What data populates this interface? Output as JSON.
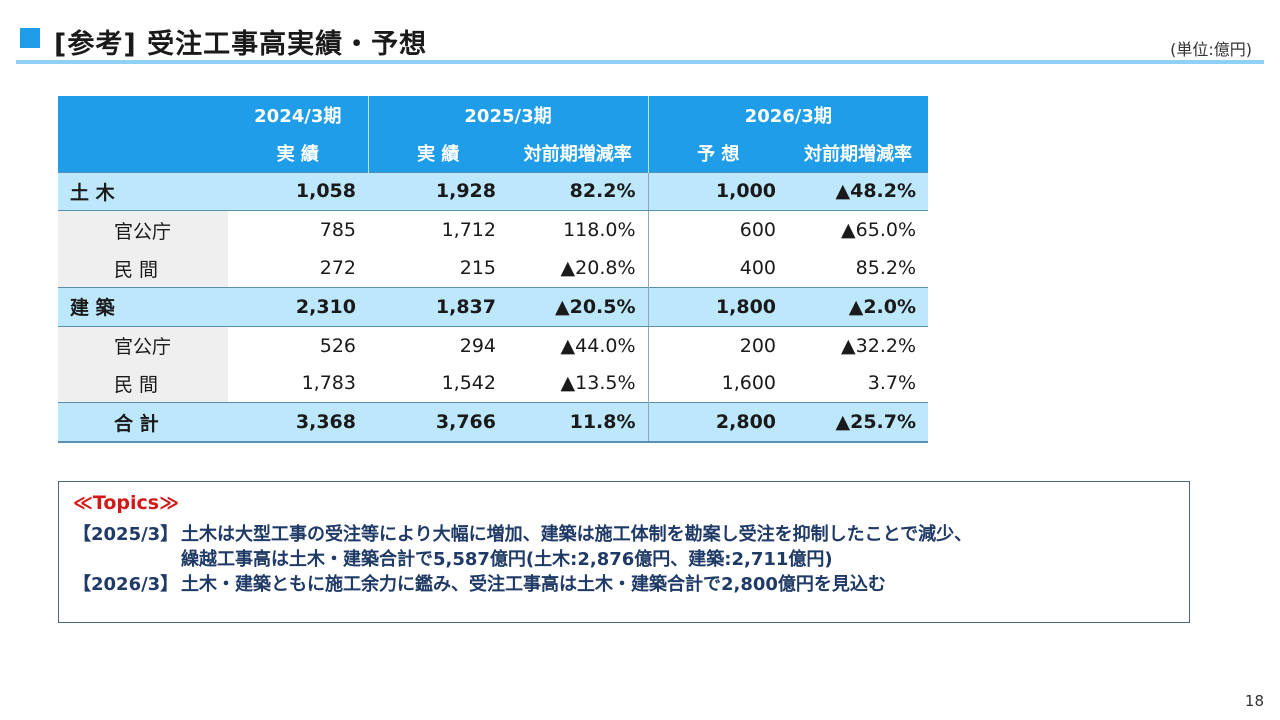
{
  "header": {
    "title": "[参考] 受注工事高実績・予想",
    "unit": "(単位:億円)"
  },
  "table": {
    "periods": [
      "2024/3期",
      "2025/3期",
      "2026/3期"
    ],
    "subheaders": [
      "実 績",
      "実 績",
      "対前期増減率",
      "予 想",
      "対前期増減率"
    ],
    "rows": [
      {
        "type": "sub",
        "label": "土 木",
        "values": [
          "1,058",
          "1,928",
          "82.2%",
          "1,000",
          "▲48.2%"
        ]
      },
      {
        "type": "detail",
        "label": "官公庁",
        "values": [
          "785",
          "1,712",
          "118.0%",
          "600",
          "▲65.0%"
        ]
      },
      {
        "type": "detail",
        "label": "民 間",
        "values": [
          "272",
          "215",
          "▲20.8%",
          "400",
          "85.2%"
        ]
      },
      {
        "type": "sub",
        "label": "建 築",
        "values": [
          "2,310",
          "1,837",
          "▲20.5%",
          "1,800",
          "▲2.0%"
        ]
      },
      {
        "type": "detail",
        "label": "官公庁",
        "values": [
          "526",
          "294",
          "▲44.0%",
          "200",
          "▲32.2%"
        ]
      },
      {
        "type": "detail",
        "label": "民 間",
        "values": [
          "1,783",
          "1,542",
          "▲13.5%",
          "1,600",
          "3.7%"
        ]
      },
      {
        "type": "total",
        "label": "合 計",
        "values": [
          "3,368",
          "3,766",
          "11.8%",
          "2,800",
          "▲25.7%"
        ]
      }
    ]
  },
  "topics": {
    "heading": "≪Topics≫",
    "items": [
      {
        "key": "【2025/3】",
        "lines": [
          "土木は大型工事の受注等により大幅に増加、建築は施工体制を勘案し受注を抑制したことで減少、",
          "繰越工事高は土木・建築合計で5,587億円(土木:2,876億円、建築:2,711億円)"
        ]
      },
      {
        "key": "【2026/3】",
        "lines": [
          "土木・建築ともに施工余力に鑑み、受注工事高は土木・建築合計で2,800億円を見込む"
        ]
      }
    ]
  },
  "page_number": "18",
  "colors": {
    "accent": "#1f9de8",
    "subtotal_row": "#bde7fb",
    "topics_heading": "#d21919"
  }
}
